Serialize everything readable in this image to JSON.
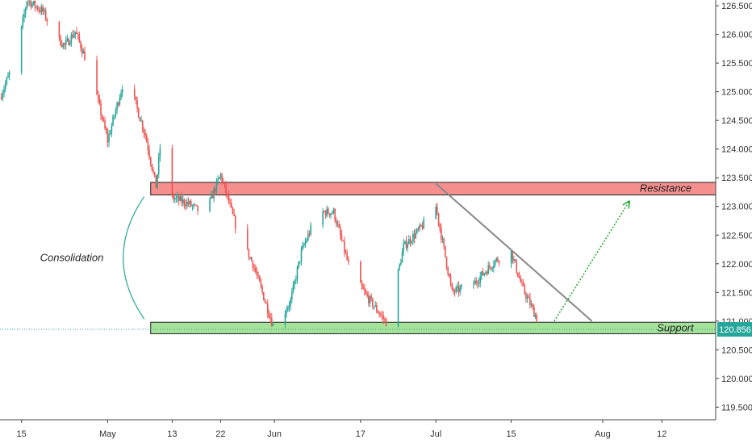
{
  "chart_data": {
    "type": "candlestick",
    "xlim": [
      "2019-04-11",
      "2019-08-22"
    ],
    "ylim": [
      119.28,
      126.6
    ],
    "y_ticks": [
      "126.500",
      "126.000",
      "125.500",
      "125.000",
      "124.500",
      "124.000",
      "123.500",
      "123.000",
      "122.500",
      "122.000",
      "121.500",
      "121.000",
      "120.500",
      "120.000",
      "119.500"
    ],
    "x_ticks": [
      {
        "label": "15",
        "date": "2019-04-15"
      },
      {
        "label": "May",
        "date": "2019-05-01"
      },
      {
        "label": "13",
        "date": "2019-05-13"
      },
      {
        "label": "22",
        "date": "2019-05-22"
      },
      {
        "label": "Jun",
        "date": "2019-06-01"
      },
      {
        "label": "17",
        "date": "2019-06-17"
      },
      {
        "label": "Jul",
        "date": "2019-07-01"
      },
      {
        "label": "15",
        "date": "2019-07-15"
      },
      {
        "label": "Aug",
        "date": "2019-08-01"
      },
      {
        "label": "12",
        "date": "2019-08-12"
      }
    ],
    "price_path": [
      [
        "2019-04-11",
        124.9
      ],
      [
        "2019-04-14",
        125.6
      ],
      [
        "2019-04-16",
        126.6
      ],
      [
        "2019-04-19",
        126.4
      ],
      [
        "2019-04-21",
        126.0
      ],
      [
        "2019-04-23",
        125.8
      ],
      [
        "2019-04-25",
        126.05
      ],
      [
        "2019-04-28",
        125.3
      ],
      [
        "2019-05-01",
        124.15
      ],
      [
        "2019-05-04",
        125.2
      ],
      [
        "2019-05-06",
        124.85
      ],
      [
        "2019-05-08",
        124.25
      ],
      [
        "2019-05-10",
        123.35
      ],
      [
        "2019-05-11",
        124.25
      ],
      [
        "2019-05-13",
        123.15
      ],
      [
        "2019-05-16",
        123.05
      ],
      [
        "2019-05-19",
        122.85
      ],
      [
        "2019-05-22",
        123.55
      ],
      [
        "2019-05-25",
        122.6
      ],
      [
        "2019-05-28",
        122.0
      ],
      [
        "2019-06-01",
        120.85
      ],
      [
        "2019-06-04",
        121.35
      ],
      [
        "2019-06-06",
        122.2
      ],
      [
        "2019-06-09",
        122.9
      ],
      [
        "2019-06-12",
        122.9
      ],
      [
        "2019-06-15",
        121.9
      ],
      [
        "2019-06-18",
        121.45
      ],
      [
        "2019-06-22",
        120.95
      ],
      [
        "2019-06-25",
        122.3
      ],
      [
        "2019-06-28",
        122.6
      ],
      [
        "2019-07-01",
        123.0
      ],
      [
        "2019-07-04",
        121.5
      ],
      [
        "2019-07-08",
        121.65
      ],
      [
        "2019-07-12",
        122.05
      ],
      [
        "2019-07-15",
        122.2
      ],
      [
        "2019-07-17",
        121.6
      ],
      [
        "2019-07-20",
        121.0
      ],
      [
        "2019-07-21",
        120.856
      ]
    ],
    "colors": {
      "up": "#26a69a",
      "down": "#ef5350"
    },
    "last_price": "120.856",
    "zones": [
      {
        "label": "Resistance",
        "from": "2019-05-09",
        "y_low": 123.2,
        "y_high": 123.42,
        "fill": "#f5908f",
        "stroke": "#222222"
      },
      {
        "label": "Support",
        "from": "2019-05-09",
        "y_low": 120.78,
        "y_high": 120.98,
        "fill": "#a5e39a",
        "stroke": "#222222"
      }
    ],
    "trendline": {
      "from": [
        "2019-07-01",
        123.4
      ],
      "to": [
        "2019-07-30",
        121.0
      ],
      "color": "#888888"
    },
    "projection_arrow": {
      "from": [
        "2019-07-23",
        121.0
      ],
      "to": [
        "2019-08-06",
        123.1
      ],
      "color": "#22a832"
    },
    "annotations": [
      {
        "text": "Consolidation"
      }
    ]
  }
}
